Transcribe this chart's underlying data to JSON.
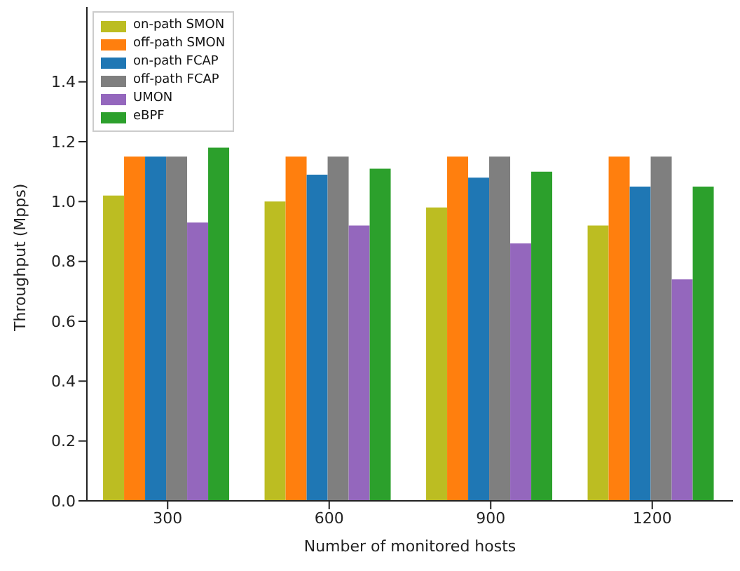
{
  "chart_data": {
    "type": "bar",
    "xlabel": "Number of monitored hosts",
    "ylabel": "Throughput (Mpps)",
    "categories": [
      "300",
      "600",
      "900",
      "1200"
    ],
    "series": [
      {
        "name": "on-path SMON",
        "color": "#bcbd22",
        "values": [
          1.02,
          1.0,
          0.98,
          0.92
        ]
      },
      {
        "name": "off-path SMON",
        "color": "#ff7f0e",
        "values": [
          1.15,
          1.15,
          1.15,
          1.15
        ]
      },
      {
        "name": "on-path FCAP",
        "color": "#1f77b4",
        "values": [
          1.15,
          1.09,
          1.08,
          1.05
        ]
      },
      {
        "name": "off-path FCAP",
        "color": "#7f7f7f",
        "values": [
          1.15,
          1.15,
          1.15,
          1.15
        ]
      },
      {
        "name": "UMON",
        "color": "#9467bd",
        "values": [
          0.93,
          0.92,
          0.86,
          0.74
        ]
      },
      {
        "name": "eBPF",
        "color": "#2ca02c",
        "values": [
          1.18,
          1.11,
          1.1,
          1.05
        ]
      }
    ],
    "ylim": [
      0,
      1.65
    ],
    "yticks": [
      {
        "value": 0,
        "label": "0.0"
      },
      0.2,
      0.4,
      0.6,
      0.8,
      {
        "value": 1,
        "label": "1.0"
      },
      1.2,
      1.4
    ],
    "legend": "top left",
    "grid": false
  }
}
